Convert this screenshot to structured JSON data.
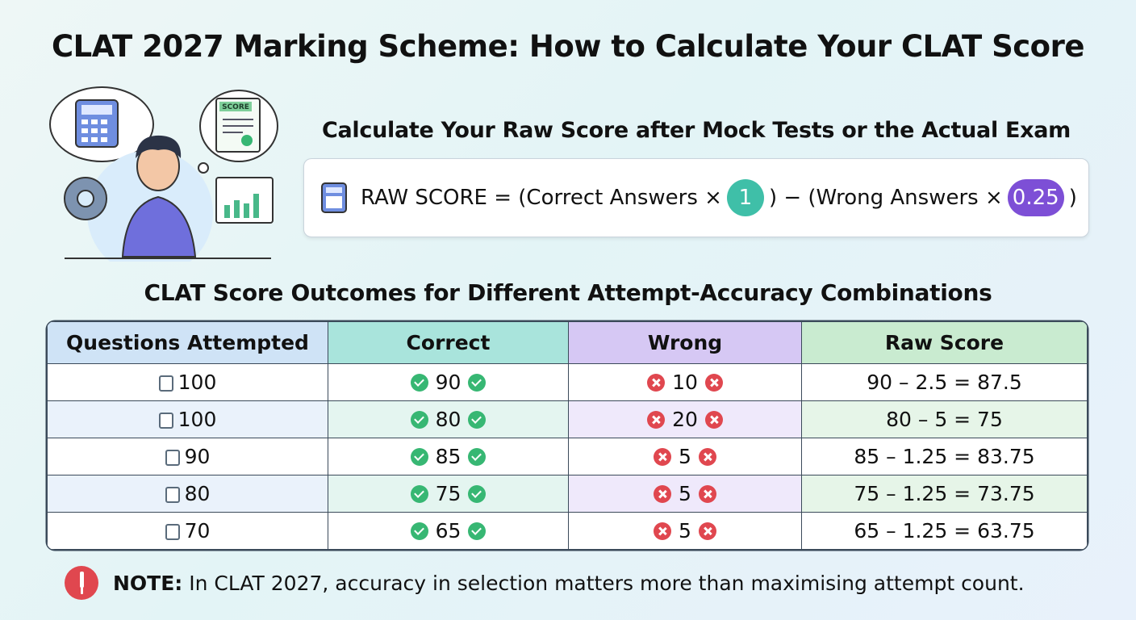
{
  "header": {
    "title": "CLAT 2027 Marking Scheme: How to Calculate Your CLAT Score"
  },
  "illustration": {
    "score_label": "SCORE"
  },
  "formula": {
    "heading": "Calculate Your Raw Score after Mock Tests or the Actual Exam",
    "left": "RAW SCORE = (Correct Answers ×",
    "correct_mark": "1",
    "middle": ") − (Wrong Answers ×",
    "wrong_mark": "0.25",
    "right": ")"
  },
  "table": {
    "title": "CLAT Score Outcomes for Different Attempt-Accuracy Combinations",
    "headers": [
      "Questions Attempted",
      "Correct",
      "Wrong",
      "Raw Score"
    ],
    "rows": [
      [
        100,
        90,
        10,
        "90 – 2.5 = 87.5"
      ],
      [
        100,
        80,
        20,
        "80 – 5 = 75"
      ],
      [
        90,
        85,
        5,
        "85 – 1.25 = 83.75"
      ],
      [
        80,
        75,
        5,
        "75 – 1.25 = 73.75"
      ],
      [
        70,
        65,
        5,
        "65 – 1.25 = 63.75"
      ]
    ]
  },
  "note": {
    "label": "NOTE:",
    "text": "In CLAT 2027, accuracy in selection matters more than maximising attempt count."
  }
}
